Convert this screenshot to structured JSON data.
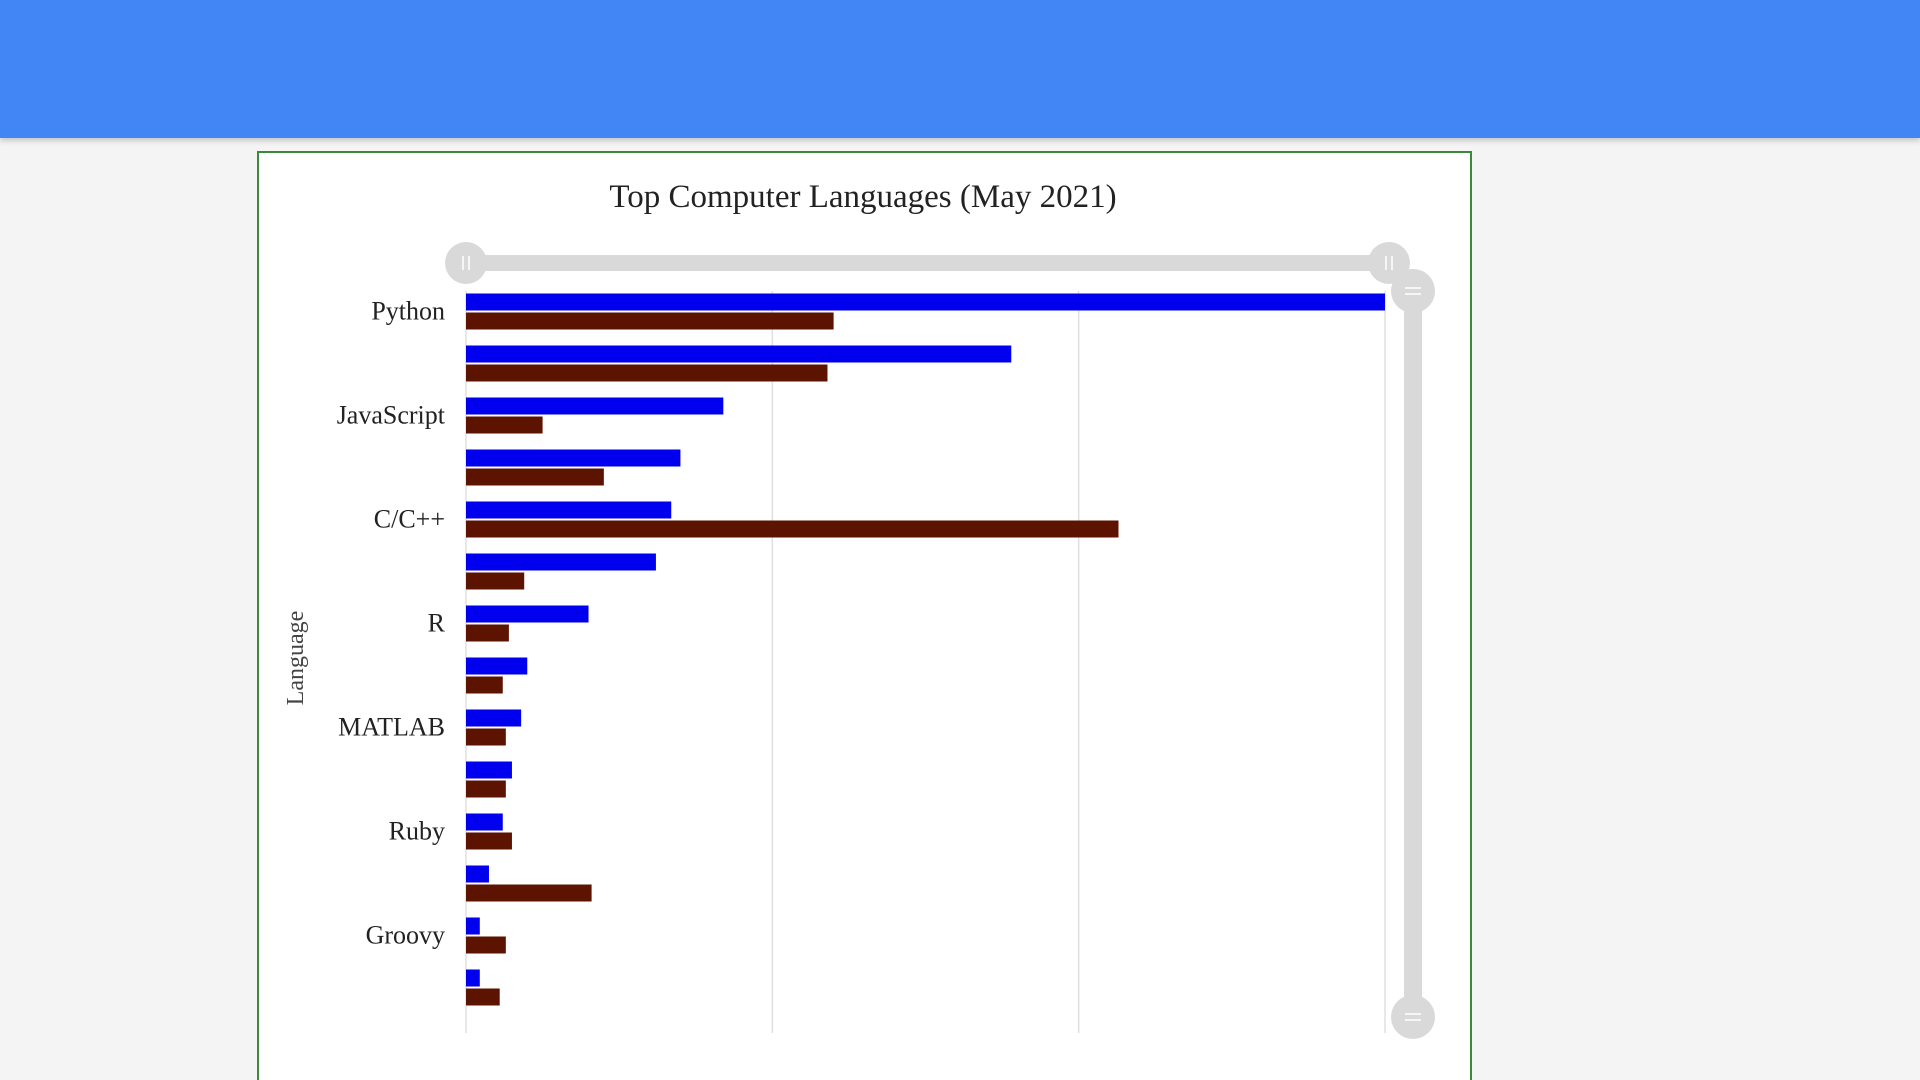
{
  "colors": {
    "header": "#4285f4",
    "series_a": "#0000ee",
    "series_b": "#5c1300",
    "gridline": "#e0e0e0",
    "scroll_track": "#d9d9d9",
    "card_border": "#3a8a3a"
  },
  "chart_data": {
    "type": "bar",
    "orientation": "horizontal",
    "title": "Top Computer Languages (May 2021)",
    "ylabel": "Language",
    "xlabel": "",
    "grid": true,
    "legend": "none",
    "xlim": [
      0,
      30
    ],
    "categories": [
      "Python",
      "",
      "JavaScript",
      "",
      "C/C++",
      "",
      "R",
      "",
      "MATLAB",
      "",
      "Ruby",
      "",
      "Groovy",
      ""
    ],
    "series": [
      {
        "values": [
          30.0,
          17.8,
          8.4,
          7.0,
          6.7,
          6.2,
          4.0,
          2.0,
          1.8,
          1.5,
          1.2,
          0.75,
          0.45,
          0.45
        ]
      },
      {
        "values": [
          12.0,
          11.8,
          2.5,
          4.5,
          21.3,
          1.9,
          1.4,
          1.2,
          1.3,
          1.3,
          1.5,
          4.1,
          1.3,
          1.1
        ]
      }
    ]
  }
}
